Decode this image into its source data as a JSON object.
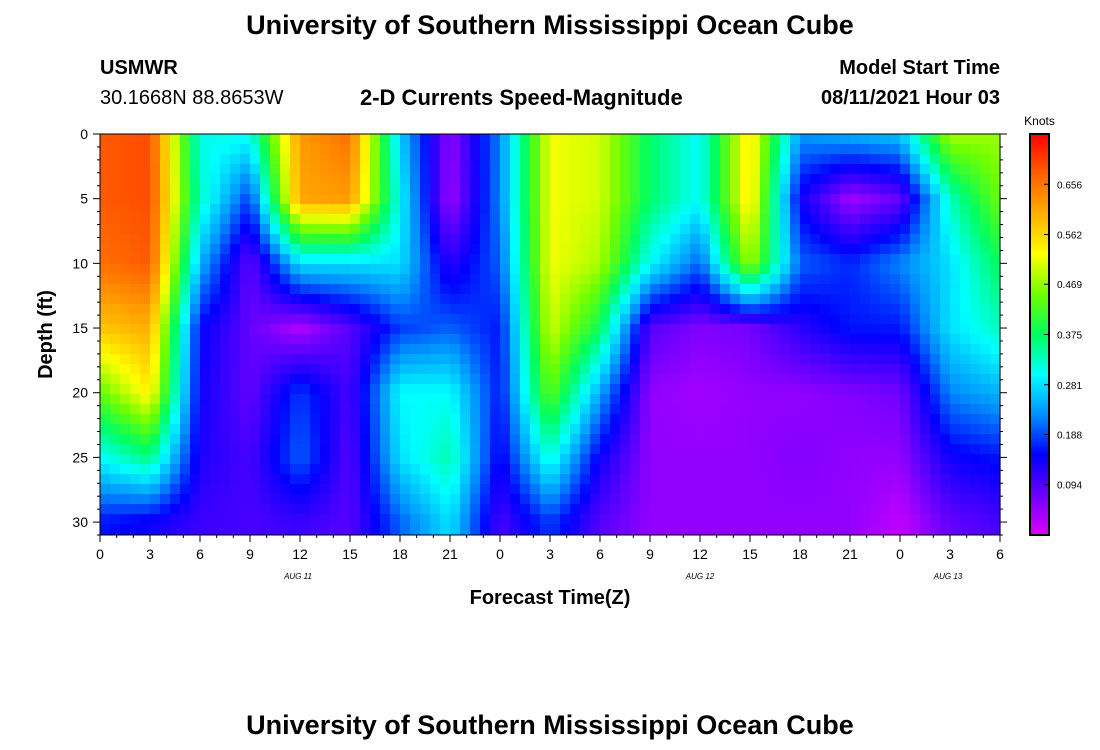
{
  "titles": {
    "top": "University of Southern Mississippi Ocean Cube",
    "bottom": "University of Southern Mississippi Ocean Cube"
  },
  "header": {
    "station": "USMWR",
    "coordinates": "30.1668N  88.8653W",
    "plot_title": "2-D Currents Speed-Magnitude",
    "model_start_label": "Model Start Time",
    "model_start_value": "08/11/2021 Hour 03"
  },
  "chart_data": {
    "type": "heatmap",
    "title": "2-D Currents Speed-Magnitude",
    "xlabel": "Forecast Time(Z)",
    "ylabel": "Depth (ft)",
    "x_tick_labels": [
      "0",
      "3",
      "6",
      "9",
      "12",
      "15",
      "18",
      "21",
      "0",
      "3",
      "6",
      "9",
      "12",
      "15",
      "18",
      "21",
      "0",
      "3",
      "6"
    ],
    "date_labels": [
      "AUG 11",
      "AUG 12",
      "AUG 13"
    ],
    "y_ticks": [
      0,
      5,
      10,
      15,
      20,
      25,
      30
    ],
    "ylim": [
      0,
      31
    ],
    "colorbar": {
      "label": "Knots",
      "ticks": [
        "0.094",
        "0.188",
        "0.281",
        "0.375",
        "0.469",
        "0.562",
        "0.656"
      ],
      "range": [
        0.0,
        0.75
      ],
      "colors": [
        "#e000ff",
        "#6a00ff",
        "#0000ff",
        "#0090ff",
        "#00ffff",
        "#00ff60",
        "#70ff00",
        "#ffff00",
        "#ffb000",
        "#ff6000",
        "#ff0000"
      ]
    },
    "columns_hours_since_start": [
      0,
      3,
      6,
      9,
      12,
      15,
      18,
      21,
      24,
      27,
      30,
      33,
      36,
      39,
      42,
      45,
      48,
      51,
      54
    ],
    "depth_rows_ft": [
      0,
      5,
      10,
      15,
      20,
      25,
      30
    ],
    "speed_knots": [
      [
        0.68,
        0.69,
        0.31,
        0.31,
        0.62,
        0.66,
        0.27,
        0.05,
        0.22,
        0.52,
        0.5,
        0.37,
        0.3,
        0.55,
        0.23,
        0.25,
        0.26,
        0.48,
        0.47
      ],
      [
        0.68,
        0.69,
        0.33,
        0.18,
        0.61,
        0.62,
        0.3,
        0.04,
        0.22,
        0.52,
        0.5,
        0.37,
        0.3,
        0.55,
        0.14,
        0.04,
        0.08,
        0.33,
        0.45
      ],
      [
        0.66,
        0.68,
        0.25,
        0.08,
        0.28,
        0.28,
        0.28,
        0.12,
        0.2,
        0.52,
        0.48,
        0.3,
        0.2,
        0.48,
        0.2,
        0.17,
        0.22,
        0.28,
        0.38
      ],
      [
        0.58,
        0.6,
        0.15,
        0.08,
        0.03,
        0.09,
        0.18,
        0.2,
        0.16,
        0.5,
        0.38,
        0.09,
        0.06,
        0.07,
        0.12,
        0.16,
        0.16,
        0.28,
        0.33
      ],
      [
        0.44,
        0.54,
        0.14,
        0.08,
        0.18,
        0.1,
        0.3,
        0.3,
        0.16,
        0.44,
        0.24,
        0.05,
        0.04,
        0.05,
        0.05,
        0.06,
        0.07,
        0.22,
        0.25
      ],
      [
        0.3,
        0.36,
        0.13,
        0.1,
        0.2,
        0.09,
        0.28,
        0.34,
        0.14,
        0.32,
        0.14,
        0.05,
        0.05,
        0.05,
        0.06,
        0.05,
        0.05,
        0.14,
        0.16
      ],
      [
        0.16,
        0.14,
        0.11,
        0.1,
        0.11,
        0.09,
        0.2,
        0.28,
        0.1,
        0.18,
        0.09,
        0.05,
        0.05,
        0.05,
        0.05,
        0.05,
        0.02,
        0.08,
        0.1
      ]
    ]
  }
}
